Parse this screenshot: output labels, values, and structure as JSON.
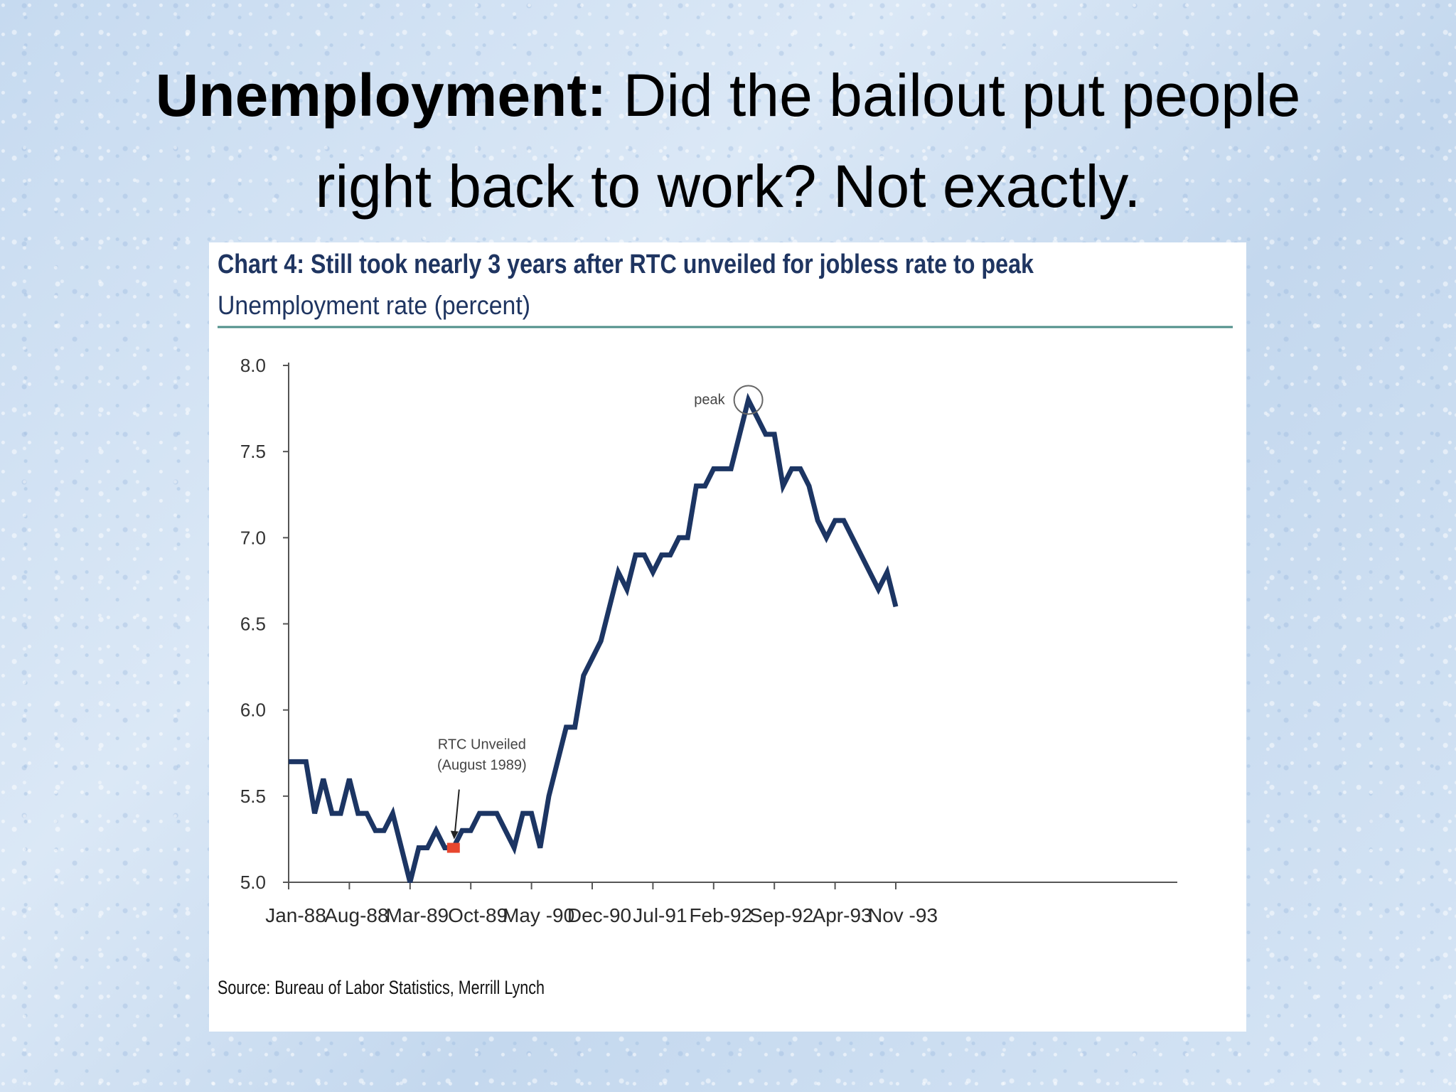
{
  "slide": {
    "title_bold": "Unemployment:",
    "title_line1_rest": " Did the bailout put people",
    "title_line2": "right back to work? Not exactly."
  },
  "colors": {
    "line": "#1c3563",
    "marker": "#e8462e",
    "header_rule": "#4f8f8a",
    "title_text": "#1f3561"
  },
  "chart_data": {
    "type": "line",
    "title": "Chart 4: Still took nearly 3 years after RTC unveiled for jobless rate to peak",
    "subtitle": "Unemployment rate   (percent)",
    "ylabel": "",
    "xlabel": "",
    "ylim": [
      5.0,
      8.0
    ],
    "yticks": [
      "8.0",
      "7.5",
      "7.0",
      "6.5",
      "6.0",
      "5.5",
      "5.0"
    ],
    "x_tick_labels": [
      "Jan-88",
      "Aug-88",
      "Mar-89",
      "Oct-89",
      "May -90",
      "Dec-90",
      "Jul-91",
      "Feb-92",
      "Sep-92",
      "Apr-93",
      "Nov -93"
    ],
    "x_start": "Jan-88",
    "x_end": "Jan-94",
    "grid": false,
    "legend": "none",
    "series": [
      {
        "name": "",
        "values": [
          5.7,
          5.7,
          5.7,
          5.4,
          5.6,
          5.4,
          5.4,
          5.6,
          5.4,
          5.4,
          5.3,
          5.3,
          5.4,
          5.2,
          5.0,
          5.2,
          5.2,
          5.3,
          5.2,
          5.2,
          5.3,
          5.3,
          5.4,
          5.4,
          5.4,
          5.3,
          5.2,
          5.4,
          5.4,
          5.2,
          5.5,
          5.7,
          5.9,
          5.9,
          6.2,
          6.3,
          6.4,
          6.6,
          6.8,
          6.7,
          6.9,
          6.9,
          6.8,
          6.9,
          6.9,
          7.0,
          7.0,
          7.3,
          7.3,
          7.4,
          7.4,
          7.4,
          7.6,
          7.8,
          7.7,
          7.6,
          7.6,
          7.3,
          7.4,
          7.4,
          7.3,
          7.1,
          7.0,
          7.1,
          7.1,
          7.0,
          6.9,
          6.8,
          6.7,
          6.8,
          6.6
        ]
      }
    ],
    "highlight": {
      "date": "Aug-89",
      "value": 5.2,
      "label_line1": "RTC Unveiled",
      "label_line2": "(August 1989)"
    },
    "peak": {
      "date": "Jun-92",
      "value": 7.8,
      "label": "peak"
    },
    "source": "Source: Bureau of Labor Statistics, Merrill Lynch"
  }
}
